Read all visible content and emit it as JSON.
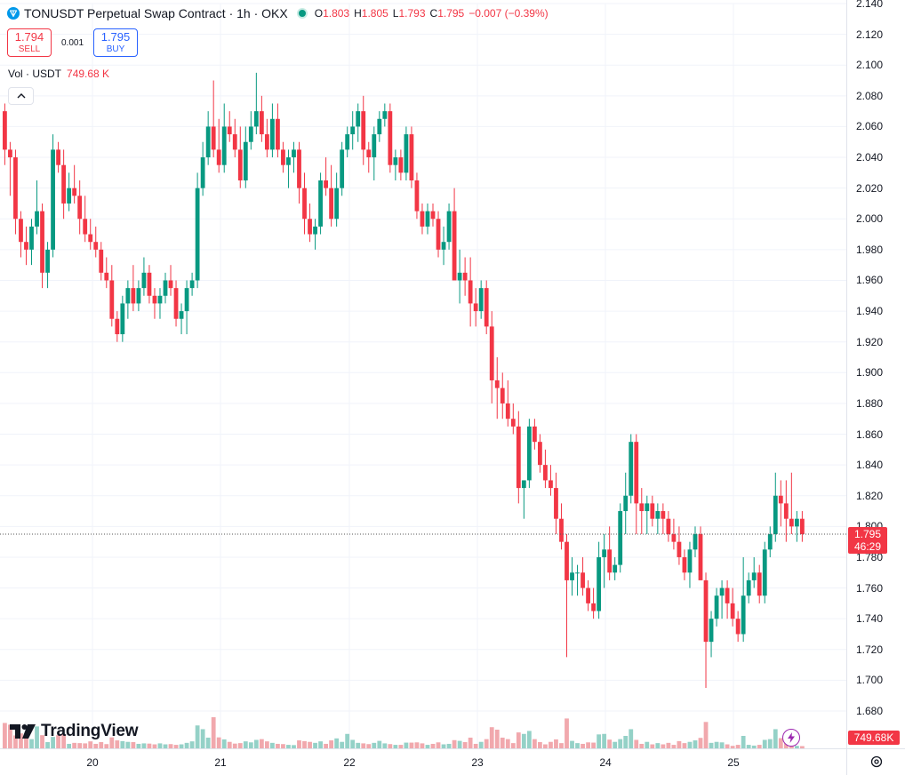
{
  "legend": {
    "title": "TONUSDT Perpetual Swap Contract · 1h · OKX",
    "o_label": "O",
    "o": "1.803",
    "h_label": "H",
    "h": "1.805",
    "l_label": "L",
    "l": "1.793",
    "c_label": "C",
    "c": "1.795",
    "change": "−0.007 (−0.39%)"
  },
  "trade": {
    "sell_price": "1.794",
    "sell_label": "SELL",
    "spread": "0.001",
    "buy_price": "1.795",
    "buy_label": "BUY"
  },
  "volume_legend": {
    "label": "Vol · USDT",
    "value": "749.68 K"
  },
  "price_tag": {
    "price": "1.795",
    "countdown": "46:29"
  },
  "volume_tag": "749.68K",
  "branding": "TradingView",
  "icons": [
    "ton-logo-icon",
    "eye-dot-icon",
    "chevron-up-icon",
    "tradingview-logo-icon",
    "lightning-icon",
    "gear-icon"
  ],
  "colors": {
    "up": "#089981",
    "down": "#f23645",
    "up_volume": "#94d1c7",
    "down_volume": "#f1a8ad",
    "buy": "#2962ff"
  },
  "chart_data": {
    "type": "candlestick",
    "symbol": "TONUSDT",
    "interval": "1h",
    "exchange": "OKX",
    "y_ticks": [
      "1.680",
      "1.700",
      "1.720",
      "1.740",
      "1.760",
      "1.780",
      "1.800",
      "1.820",
      "1.840",
      "1.860",
      "1.880",
      "1.900",
      "1.920",
      "1.940",
      "1.960",
      "1.980",
      "2.000",
      "2.020",
      "2.040",
      "2.060",
      "2.080",
      "2.100",
      "2.120",
      "2.140"
    ],
    "ylim": [
      1.68,
      2.14
    ],
    "x_ticks": [
      "20",
      "21",
      "22",
      "23",
      "24",
      "25"
    ],
    "last_price_line": 1.795,
    "volume_scale_max": 750,
    "candles": [
      [
        2.07,
        2.075,
        2.035,
        2.045,
        102
      ],
      [
        2.045,
        2.05,
        2.015,
        2.04,
        95
      ],
      [
        2.04,
        2.045,
        1.99,
        2.0,
        52
      ],
      [
        2.0,
        2.005,
        1.975,
        1.985,
        60
      ],
      [
        1.985,
        1.995,
        1.97,
        1.98,
        48
      ],
      [
        1.98,
        2.0,
        1.97,
        1.995,
        37
      ],
      [
        1.995,
        2.025,
        1.99,
        2.005,
        88
      ],
      [
        2.005,
        2.01,
        1.955,
        1.965,
        53
      ],
      [
        1.965,
        1.985,
        1.955,
        1.98,
        25
      ],
      [
        1.98,
        2.055,
        1.975,
        2.045,
        46
      ],
      [
        2.045,
        2.05,
        2.03,
        2.035,
        53
      ],
      [
        2.035,
        2.045,
        2.0,
        2.01,
        57
      ],
      [
        2.01,
        2.03,
        2.005,
        2.02,
        18
      ],
      [
        2.02,
        2.035,
        2.01,
        2.015,
        22
      ],
      [
        2.015,
        2.025,
        1.99,
        2.0,
        21
      ],
      [
        2.0,
        2.015,
        1.985,
        1.99,
        20
      ],
      [
        1.99,
        2.0,
        1.98,
        1.985,
        28
      ],
      [
        1.985,
        1.995,
        1.975,
        1.98,
        18
      ],
      [
        1.98,
        1.985,
        1.96,
        1.965,
        25
      ],
      [
        1.965,
        1.975,
        1.955,
        1.96,
        17
      ],
      [
        1.96,
        1.97,
        1.93,
        1.935,
        44
      ],
      [
        1.935,
        1.94,
        1.92,
        1.925,
        32
      ],
      [
        1.925,
        1.95,
        1.92,
        1.945,
        29
      ],
      [
        1.945,
        1.96,
        1.935,
        1.955,
        26
      ],
      [
        1.955,
        1.97,
        1.94,
        1.945,
        25
      ],
      [
        1.945,
        1.96,
        1.94,
        1.955,
        18
      ],
      [
        1.955,
        1.975,
        1.95,
        1.965,
        20
      ],
      [
        1.965,
        1.97,
        1.945,
        1.95,
        19
      ],
      [
        1.95,
        1.955,
        1.935,
        1.945,
        16
      ],
      [
        1.945,
        1.955,
        1.935,
        1.95,
        20
      ],
      [
        1.95,
        1.965,
        1.945,
        1.96,
        16
      ],
      [
        1.96,
        1.97,
        1.95,
        1.955,
        17
      ],
      [
        1.955,
        1.96,
        1.93,
        1.935,
        14
      ],
      [
        1.935,
        1.945,
        1.925,
        1.94,
        16
      ],
      [
        1.94,
        1.96,
        1.925,
        1.955,
        22
      ],
      [
        1.955,
        1.965,
        1.95,
        1.96,
        28
      ],
      [
        1.96,
        2.03,
        1.955,
        2.02,
        92
      ],
      [
        2.02,
        2.05,
        2.015,
        2.04,
        77
      ],
      [
        2.04,
        2.07,
        2.035,
        2.06,
        43
      ],
      [
        2.06,
        2.09,
        2.04,
        2.045,
        125
      ],
      [
        2.045,
        2.065,
        2.03,
        2.035,
        44
      ],
      [
        2.035,
        2.075,
        2.03,
        2.06,
        36
      ],
      [
        2.06,
        2.07,
        2.05,
        2.055,
        26
      ],
      [
        2.055,
        2.065,
        2.04,
        2.045,
        19
      ],
      [
        2.045,
        2.06,
        2.02,
        2.025,
        21
      ],
      [
        2.025,
        2.06,
        2.02,
        2.05,
        28
      ],
      [
        2.05,
        2.07,
        2.045,
        2.06,
        24
      ],
      [
        2.06,
        2.095,
        2.055,
        2.07,
        34
      ],
      [
        2.07,
        2.08,
        2.05,
        2.055,
        37
      ],
      [
        2.055,
        2.065,
        2.04,
        2.045,
        28
      ],
      [
        2.045,
        2.075,
        2.04,
        2.065,
        22
      ],
      [
        2.065,
        2.075,
        2.04,
        2.045,
        18
      ],
      [
        2.045,
        2.05,
        2.03,
        2.035,
        17
      ],
      [
        2.035,
        2.045,
        2.02,
        2.04,
        14
      ],
      [
        2.04,
        2.05,
        2.03,
        2.045,
        13
      ],
      [
        2.045,
        2.05,
        2.01,
        2.02,
        32
      ],
      [
        2.02,
        2.03,
        1.99,
        2.0,
        29
      ],
      [
        2.0,
        2.01,
        1.985,
        1.99,
        26
      ],
      [
        1.99,
        2.0,
        1.98,
        1.995,
        22
      ],
      [
        1.995,
        2.03,
        1.99,
        2.025,
        28
      ],
      [
        2.025,
        2.04,
        2.015,
        2.02,
        18
      ],
      [
        2.02,
        2.035,
        1.995,
        2.0,
        32
      ],
      [
        2.0,
        2.03,
        1.995,
        2.02,
        40
      ],
      [
        2.02,
        2.05,
        2.015,
        2.045,
        26
      ],
      [
        2.045,
        2.06,
        2.04,
        2.055,
        58
      ],
      [
        2.055,
        2.07,
        2.045,
        2.06,
        34
      ],
      [
        2.06,
        2.075,
        2.05,
        2.07,
        22
      ],
      [
        2.07,
        2.08,
        2.035,
        2.045,
        20
      ],
      [
        2.045,
        2.05,
        2.03,
        2.04,
        17
      ],
      [
        2.04,
        2.06,
        2.025,
        2.055,
        22
      ],
      [
        2.055,
        2.07,
        2.05,
        2.065,
        30
      ],
      [
        2.065,
        2.075,
        2.06,
        2.07,
        20
      ],
      [
        2.07,
        2.075,
        2.03,
        2.035,
        17
      ],
      [
        2.035,
        2.045,
        2.025,
        2.04,
        14
      ],
      [
        2.04,
        2.045,
        2.025,
        2.03,
        14
      ],
      [
        2.03,
        2.06,
        2.025,
        2.055,
        23
      ],
      [
        2.055,
        2.06,
        2.02,
        2.025,
        23
      ],
      [
        2.025,
        2.03,
        2.0,
        2.005,
        24
      ],
      [
        2.005,
        2.01,
        1.99,
        1.995,
        20
      ],
      [
        1.995,
        2.01,
        1.99,
        2.005,
        14
      ],
      [
        2.005,
        2.01,
        1.995,
        2.0,
        18
      ],
      [
        2.0,
        2.005,
        1.975,
        1.98,
        24
      ],
      [
        1.98,
        1.995,
        1.97,
        1.985,
        16
      ],
      [
        1.985,
        2.01,
        1.98,
        2.005,
        18
      ],
      [
        2.005,
        2.02,
        1.96,
        1.96,
        33
      ],
      [
        1.96,
        1.98,
        1.945,
        1.965,
        30
      ],
      [
        1.965,
        1.975,
        1.95,
        1.96,
        25
      ],
      [
        1.96,
        1.975,
        1.93,
        1.945,
        43
      ],
      [
        1.945,
        1.955,
        1.93,
        1.94,
        18
      ],
      [
        1.94,
        1.96,
        1.935,
        1.955,
        26
      ],
      [
        1.955,
        1.96,
        1.925,
        1.93,
        37
      ],
      [
        1.93,
        1.94,
        1.88,
        1.895,
        85
      ],
      [
        1.895,
        1.91,
        1.87,
        1.89,
        75
      ],
      [
        1.89,
        1.9,
        1.87,
        1.88,
        43
      ],
      [
        1.88,
        1.895,
        1.865,
        1.87,
        37
      ],
      [
        1.87,
        1.88,
        1.86,
        1.865,
        21
      ],
      [
        1.865,
        1.875,
        1.815,
        1.825,
        64
      ],
      [
        1.825,
        1.83,
        1.805,
        1.83,
        58
      ],
      [
        1.83,
        1.87,
        1.825,
        1.865,
        70
      ],
      [
        1.865,
        1.87,
        1.85,
        1.855,
        37
      ],
      [
        1.855,
        1.86,
        1.835,
        1.84,
        25
      ],
      [
        1.84,
        1.85,
        1.825,
        1.83,
        16
      ],
      [
        1.83,
        1.84,
        1.82,
        1.825,
        26
      ],
      [
        1.825,
        1.835,
        1.795,
        1.805,
        36
      ],
      [
        1.805,
        1.815,
        1.785,
        1.79,
        21
      ],
      [
        1.79,
        1.795,
        1.715,
        1.765,
        120
      ],
      [
        1.765,
        1.78,
        1.755,
        1.77,
        30
      ],
      [
        1.77,
        1.775,
        1.755,
        1.77,
        21
      ],
      [
        1.77,
        1.78,
        1.755,
        1.76,
        18
      ],
      [
        1.76,
        1.765,
        1.745,
        1.75,
        24
      ],
      [
        1.75,
        1.76,
        1.74,
        1.745,
        23
      ],
      [
        1.745,
        1.79,
        1.74,
        1.78,
        56
      ],
      [
        1.78,
        1.795,
        1.76,
        1.785,
        58
      ],
      [
        1.785,
        1.8,
        1.765,
        1.77,
        35
      ],
      [
        1.77,
        1.78,
        1.765,
        1.775,
        26
      ],
      [
        1.775,
        1.815,
        1.77,
        1.81,
        37
      ],
      [
        1.81,
        1.835,
        1.795,
        1.82,
        50
      ],
      [
        1.82,
        1.86,
        1.815,
        1.855,
        77
      ],
      [
        1.855,
        1.86,
        1.795,
        1.815,
        34
      ],
      [
        1.815,
        1.825,
        1.795,
        1.81,
        18
      ],
      [
        1.81,
        1.82,
        1.795,
        1.815,
        26
      ],
      [
        1.815,
        1.82,
        1.8,
        1.805,
        16
      ],
      [
        1.805,
        1.815,
        1.795,
        1.81,
        21
      ],
      [
        1.81,
        1.815,
        1.795,
        1.805,
        16
      ],
      [
        1.805,
        1.81,
        1.79,
        1.795,
        22
      ],
      [
        1.795,
        1.805,
        1.785,
        1.79,
        14
      ],
      [
        1.79,
        1.8,
        1.775,
        1.78,
        29
      ],
      [
        1.78,
        1.785,
        1.765,
        1.77,
        21
      ],
      [
        1.77,
        1.79,
        1.76,
        1.785,
        26
      ],
      [
        1.785,
        1.8,
        1.78,
        1.795,
        32
      ],
      [
        1.795,
        1.8,
        1.765,
        1.765,
        42
      ],
      [
        1.765,
        1.77,
        1.695,
        1.725,
        106
      ],
      [
        1.725,
        1.745,
        1.715,
        1.74,
        22
      ],
      [
        1.74,
        1.76,
        1.735,
        1.755,
        26
      ],
      [
        1.755,
        1.765,
        1.74,
        1.76,
        24
      ],
      [
        1.76,
        1.765,
        1.74,
        1.75,
        16
      ],
      [
        1.75,
        1.76,
        1.735,
        1.74,
        10
      ],
      [
        1.74,
        1.745,
        1.725,
        1.73,
        14
      ],
      [
        1.73,
        1.78,
        1.725,
        1.755,
        50
      ],
      [
        1.755,
        1.77,
        1.75,
        1.765,
        14
      ],
      [
        1.765,
        1.78,
        1.76,
        1.77,
        11
      ],
      [
        1.77,
        1.775,
        1.75,
        1.755,
        14
      ],
      [
        1.755,
        1.79,
        1.75,
        1.785,
        34
      ],
      [
        1.785,
        1.8,
        1.78,
        1.795,
        37
      ],
      [
        1.795,
        1.835,
        1.79,
        1.82,
        77
      ],
      [
        1.82,
        1.83,
        1.8,
        1.815,
        41
      ],
      [
        1.815,
        1.83,
        1.79,
        1.805,
        56
      ],
      [
        1.805,
        1.835,
        1.795,
        1.8,
        23
      ],
      [
        1.8,
        1.81,
        1.79,
        1.805,
        10
      ],
      [
        1.805,
        1.81,
        1.79,
        1.795,
        9
      ]
    ]
  }
}
